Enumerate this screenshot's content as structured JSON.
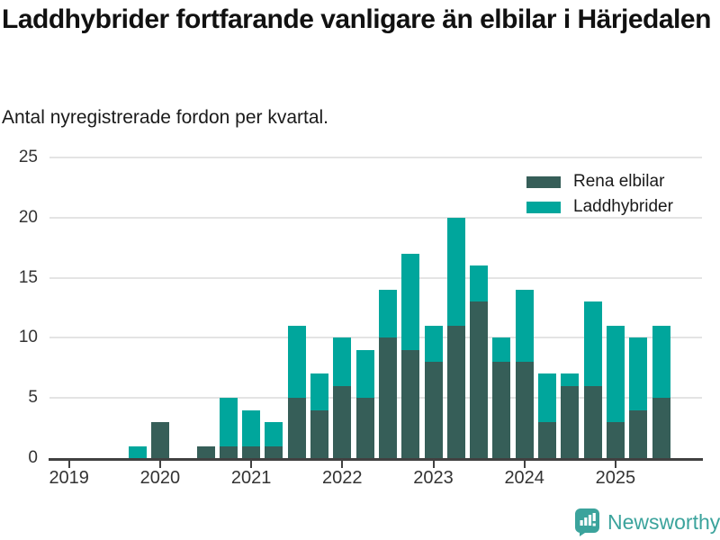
{
  "header": {
    "title": "Laddhybrider fortfarande vanligare än elbilar i Härjedalen",
    "subtitle": "Antal nyregistrerade fordon per kvartal."
  },
  "chart_data": {
    "type": "bar",
    "stacked": true,
    "title": "Laddhybrider fortfarande vanligare än elbilar i Härjedalen",
    "subtitle": "Antal nyregistrerade fordon per kvartal.",
    "xlabel": "",
    "ylabel": "",
    "ylim": [
      0,
      25
    ],
    "y_ticks": [
      0,
      5,
      10,
      15,
      20,
      25
    ],
    "grid": "horizontal-only",
    "legend_position": "top-right",
    "x_year_ticks": [
      "2019",
      "2020",
      "2021",
      "2022",
      "2023",
      "2024",
      "2025"
    ],
    "categories": [
      "2019 Q1",
      "2019 Q2",
      "2019 Q3",
      "2019 Q4",
      "2020 Q1",
      "2020 Q2",
      "2020 Q3",
      "2020 Q4",
      "2021 Q1",
      "2021 Q2",
      "2021 Q3",
      "2021 Q4",
      "2022 Q1",
      "2022 Q2",
      "2022 Q3",
      "2022 Q4",
      "2023 Q1",
      "2023 Q2",
      "2023 Q3",
      "2023 Q4",
      "2024 Q1",
      "2024 Q2",
      "2024 Q3",
      "2024 Q4",
      "2025 Q1",
      "2025 Q2",
      "2025 Q3"
    ],
    "series": [
      {
        "name": "Rena elbilar",
        "color": "#365E58",
        "values": [
          0,
          0,
          0,
          0,
          3,
          0,
          1,
          1,
          1,
          1,
          5,
          4,
          6,
          5,
          10,
          9,
          8,
          11,
          13,
          8,
          8,
          3,
          6,
          6,
          3,
          4,
          5
        ]
      },
      {
        "name": "Laddhybrider",
        "color": "#00A69C",
        "values": [
          0,
          0,
          0,
          1,
          0,
          0,
          0,
          4,
          3,
          2,
          6,
          3,
          4,
          4,
          4,
          8,
          3,
          9,
          3,
          2,
          6,
          4,
          1,
          7,
          8,
          6,
          6
        ]
      }
    ]
  },
  "axis_colors": {
    "axis_line": "#414141",
    "tick_label": "#333333",
    "gridline": "#e4e4e4"
  },
  "footer": {
    "brand": "Newsworthy",
    "brand_color": "#3ba39c",
    "logo_icon": "bar-chart-speech-bubble-icon"
  }
}
